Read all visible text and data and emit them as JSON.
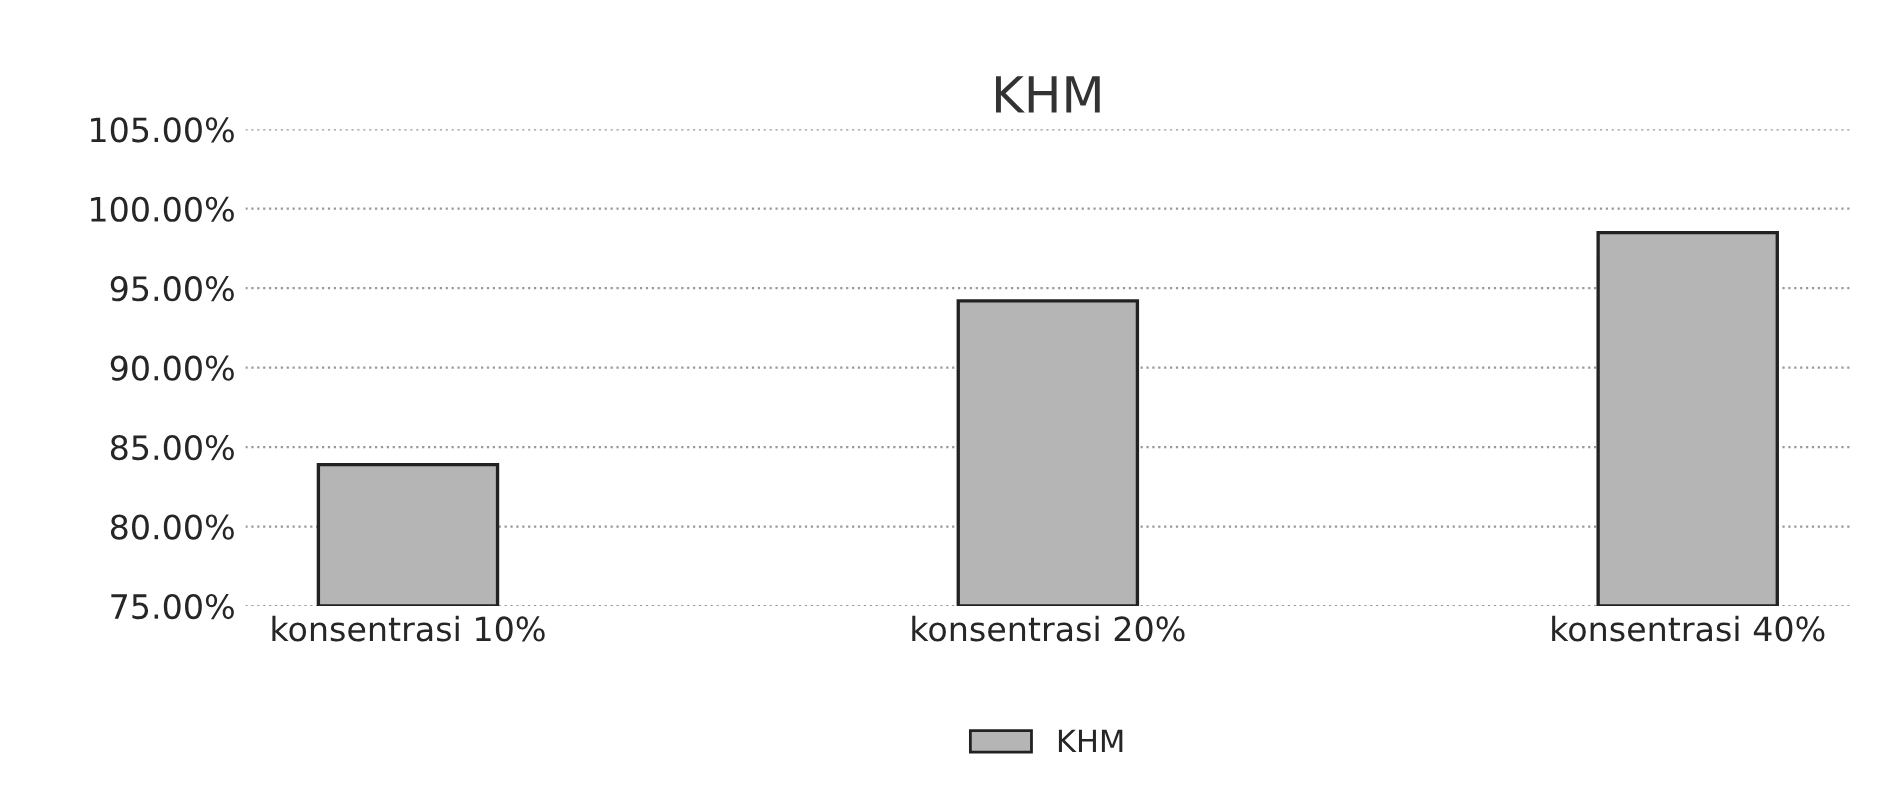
{
  "chart_data": {
    "type": "bar",
    "title": "KHM",
    "categories": [
      "konsentrasi 10%",
      "konsentrasi 20%",
      "konsentrasi 40%"
    ],
    "series": [
      {
        "name": "KHM",
        "color": "#b5b5b5",
        "values": [
          83.9,
          94.2,
          98.5
        ]
      }
    ],
    "ylim": [
      75,
      105
    ],
    "yticks": [
      {
        "value": 75,
        "label": "75.00%"
      },
      {
        "value": 80,
        "label": "80.00%"
      },
      {
        "value": 85,
        "label": "85.00%"
      },
      {
        "value": 90,
        "label": "90.00%"
      },
      {
        "value": 95,
        "label": "95.00%"
      },
      {
        "value": 100,
        "label": "100.00%"
      },
      {
        "value": 105,
        "label": "105.00%"
      }
    ],
    "grid": "y",
    "legend": "bottom"
  }
}
